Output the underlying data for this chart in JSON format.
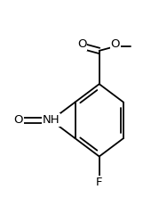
{
  "background_color": "#ffffff",
  "figsize": [
    1.88,
    2.31
  ],
  "dpi": 100,
  "lw": 1.3,
  "fontsize": 9.5,
  "xlim": [
    0.0,
    1.0
  ],
  "ylim": [
    0.05,
    1.0
  ]
}
